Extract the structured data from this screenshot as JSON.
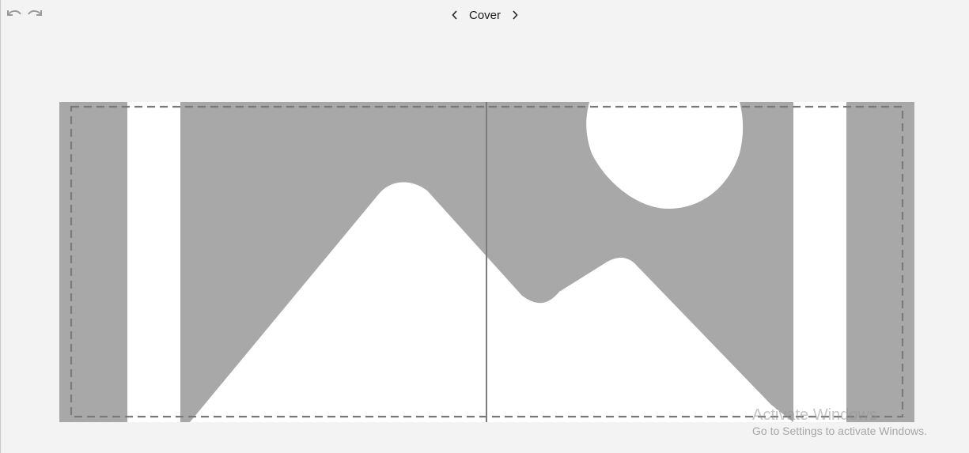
{
  "header": {
    "page_title": "Cover"
  },
  "toolbar": {
    "undo_icon": "undo-icon",
    "redo_icon": "redo-icon",
    "prev_icon": "chevron-left-icon",
    "next_icon": "chevron-right-icon"
  },
  "canvas": {
    "placeholder_icon": "image-placeholder-icon",
    "colors": {
      "bleed": "#a8a8a8",
      "background": "#ffffff",
      "guide": "#7a7a7a",
      "spine": "#7c7c7c"
    }
  },
  "watermark": {
    "title": "Activate Windows",
    "subtitle": "Go to Settings to activate Windows."
  }
}
